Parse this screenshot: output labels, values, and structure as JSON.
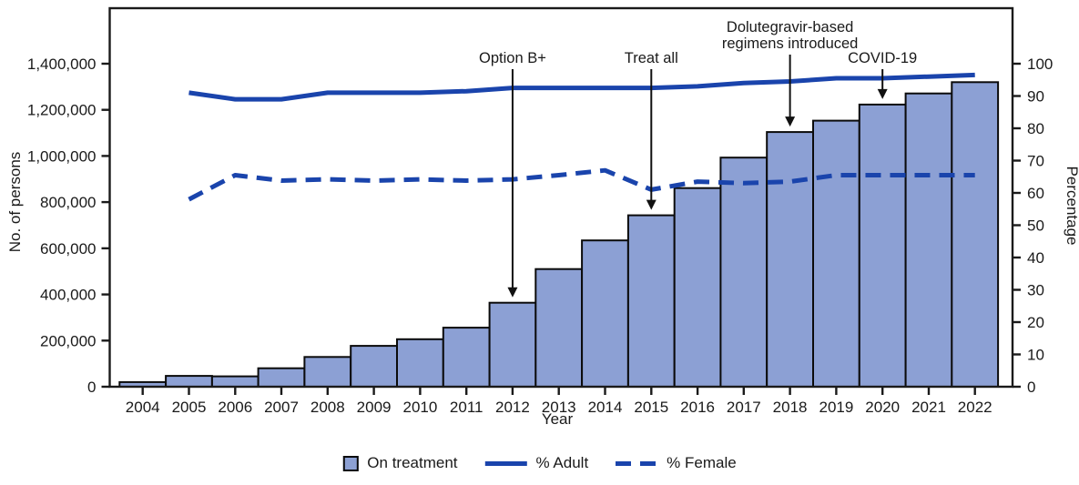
{
  "chart_data": {
    "type": "bar",
    "subtype": "combo-bar-and-lines",
    "title": "",
    "xlabel": "Year",
    "ylabel_left": "No. of persons",
    "ylabel_right": "Percentage",
    "years": [
      2004,
      2005,
      2006,
      2007,
      2008,
      2009,
      2010,
      2011,
      2012,
      2013,
      2014,
      2015,
      2016,
      2017,
      2018,
      2019,
      2020,
      2021,
      2022
    ],
    "y_left": {
      "min": 0,
      "max": 1400000,
      "ticks": [
        0,
        200000,
        400000,
        600000,
        800000,
        1000000,
        1200000,
        1400000
      ]
    },
    "y_right": {
      "min": 0,
      "max": 100,
      "ticks": [
        0,
        10,
        20,
        30,
        40,
        50,
        60,
        70,
        80,
        90,
        100
      ]
    },
    "grid": "off",
    "legend_position": "bottom-center",
    "series": [
      {
        "name": "On treatment",
        "type": "bar",
        "axis": "left",
        "start_year": 2004,
        "values": [
          20000,
          47000,
          45000,
          80000,
          129000,
          177000,
          206000,
          256000,
          364000,
          510000,
          634000,
          743000,
          861000,
          993000,
          1104000,
          1153000,
          1223000,
          1271000,
          1320000
        ]
      },
      {
        "name": "% Adult",
        "type": "line",
        "style": "solid",
        "axis": "right",
        "start_year": 2005,
        "values": [
          91,
          89,
          89,
          91,
          91,
          91,
          91.5,
          92.5,
          92.5,
          92.5,
          92.5,
          93,
          94,
          94.5,
          95.5,
          95.5,
          96,
          96.5
        ]
      },
      {
        "name": "% Female",
        "type": "line",
        "style": "dashed",
        "axis": "right",
        "start_year": 2005,
        "values": [
          58,
          65.5,
          63.8,
          64.2,
          63.8,
          64.2,
          63.8,
          64.2,
          65.5,
          67,
          61,
          63.5,
          63,
          63.5,
          65.5,
          65.5,
          65.5,
          65.5
        ]
      }
    ],
    "annotations": [
      {
        "lines": [
          "Option B+"
        ],
        "year": 2012
      },
      {
        "lines": [
          "Treat all"
        ],
        "year": 2015
      },
      {
        "lines": [
          "Dolutegravir-based",
          "regimens introduced"
        ],
        "year": 2018
      },
      {
        "lines": [
          "COVID-19"
        ],
        "year": 2020
      }
    ],
    "legend": [
      {
        "label": "On treatment",
        "swatch": "box"
      },
      {
        "label": "% Adult",
        "swatch": "solid-line"
      },
      {
        "label": "% Female",
        "swatch": "dashed-line"
      }
    ],
    "colors": {
      "bar_fill": "#8CA0D4",
      "bar_border": "#0B0B0B",
      "line_blue": "#1A44AC",
      "axis": "#1A1A1A",
      "background": "#FFFFFF"
    }
  }
}
